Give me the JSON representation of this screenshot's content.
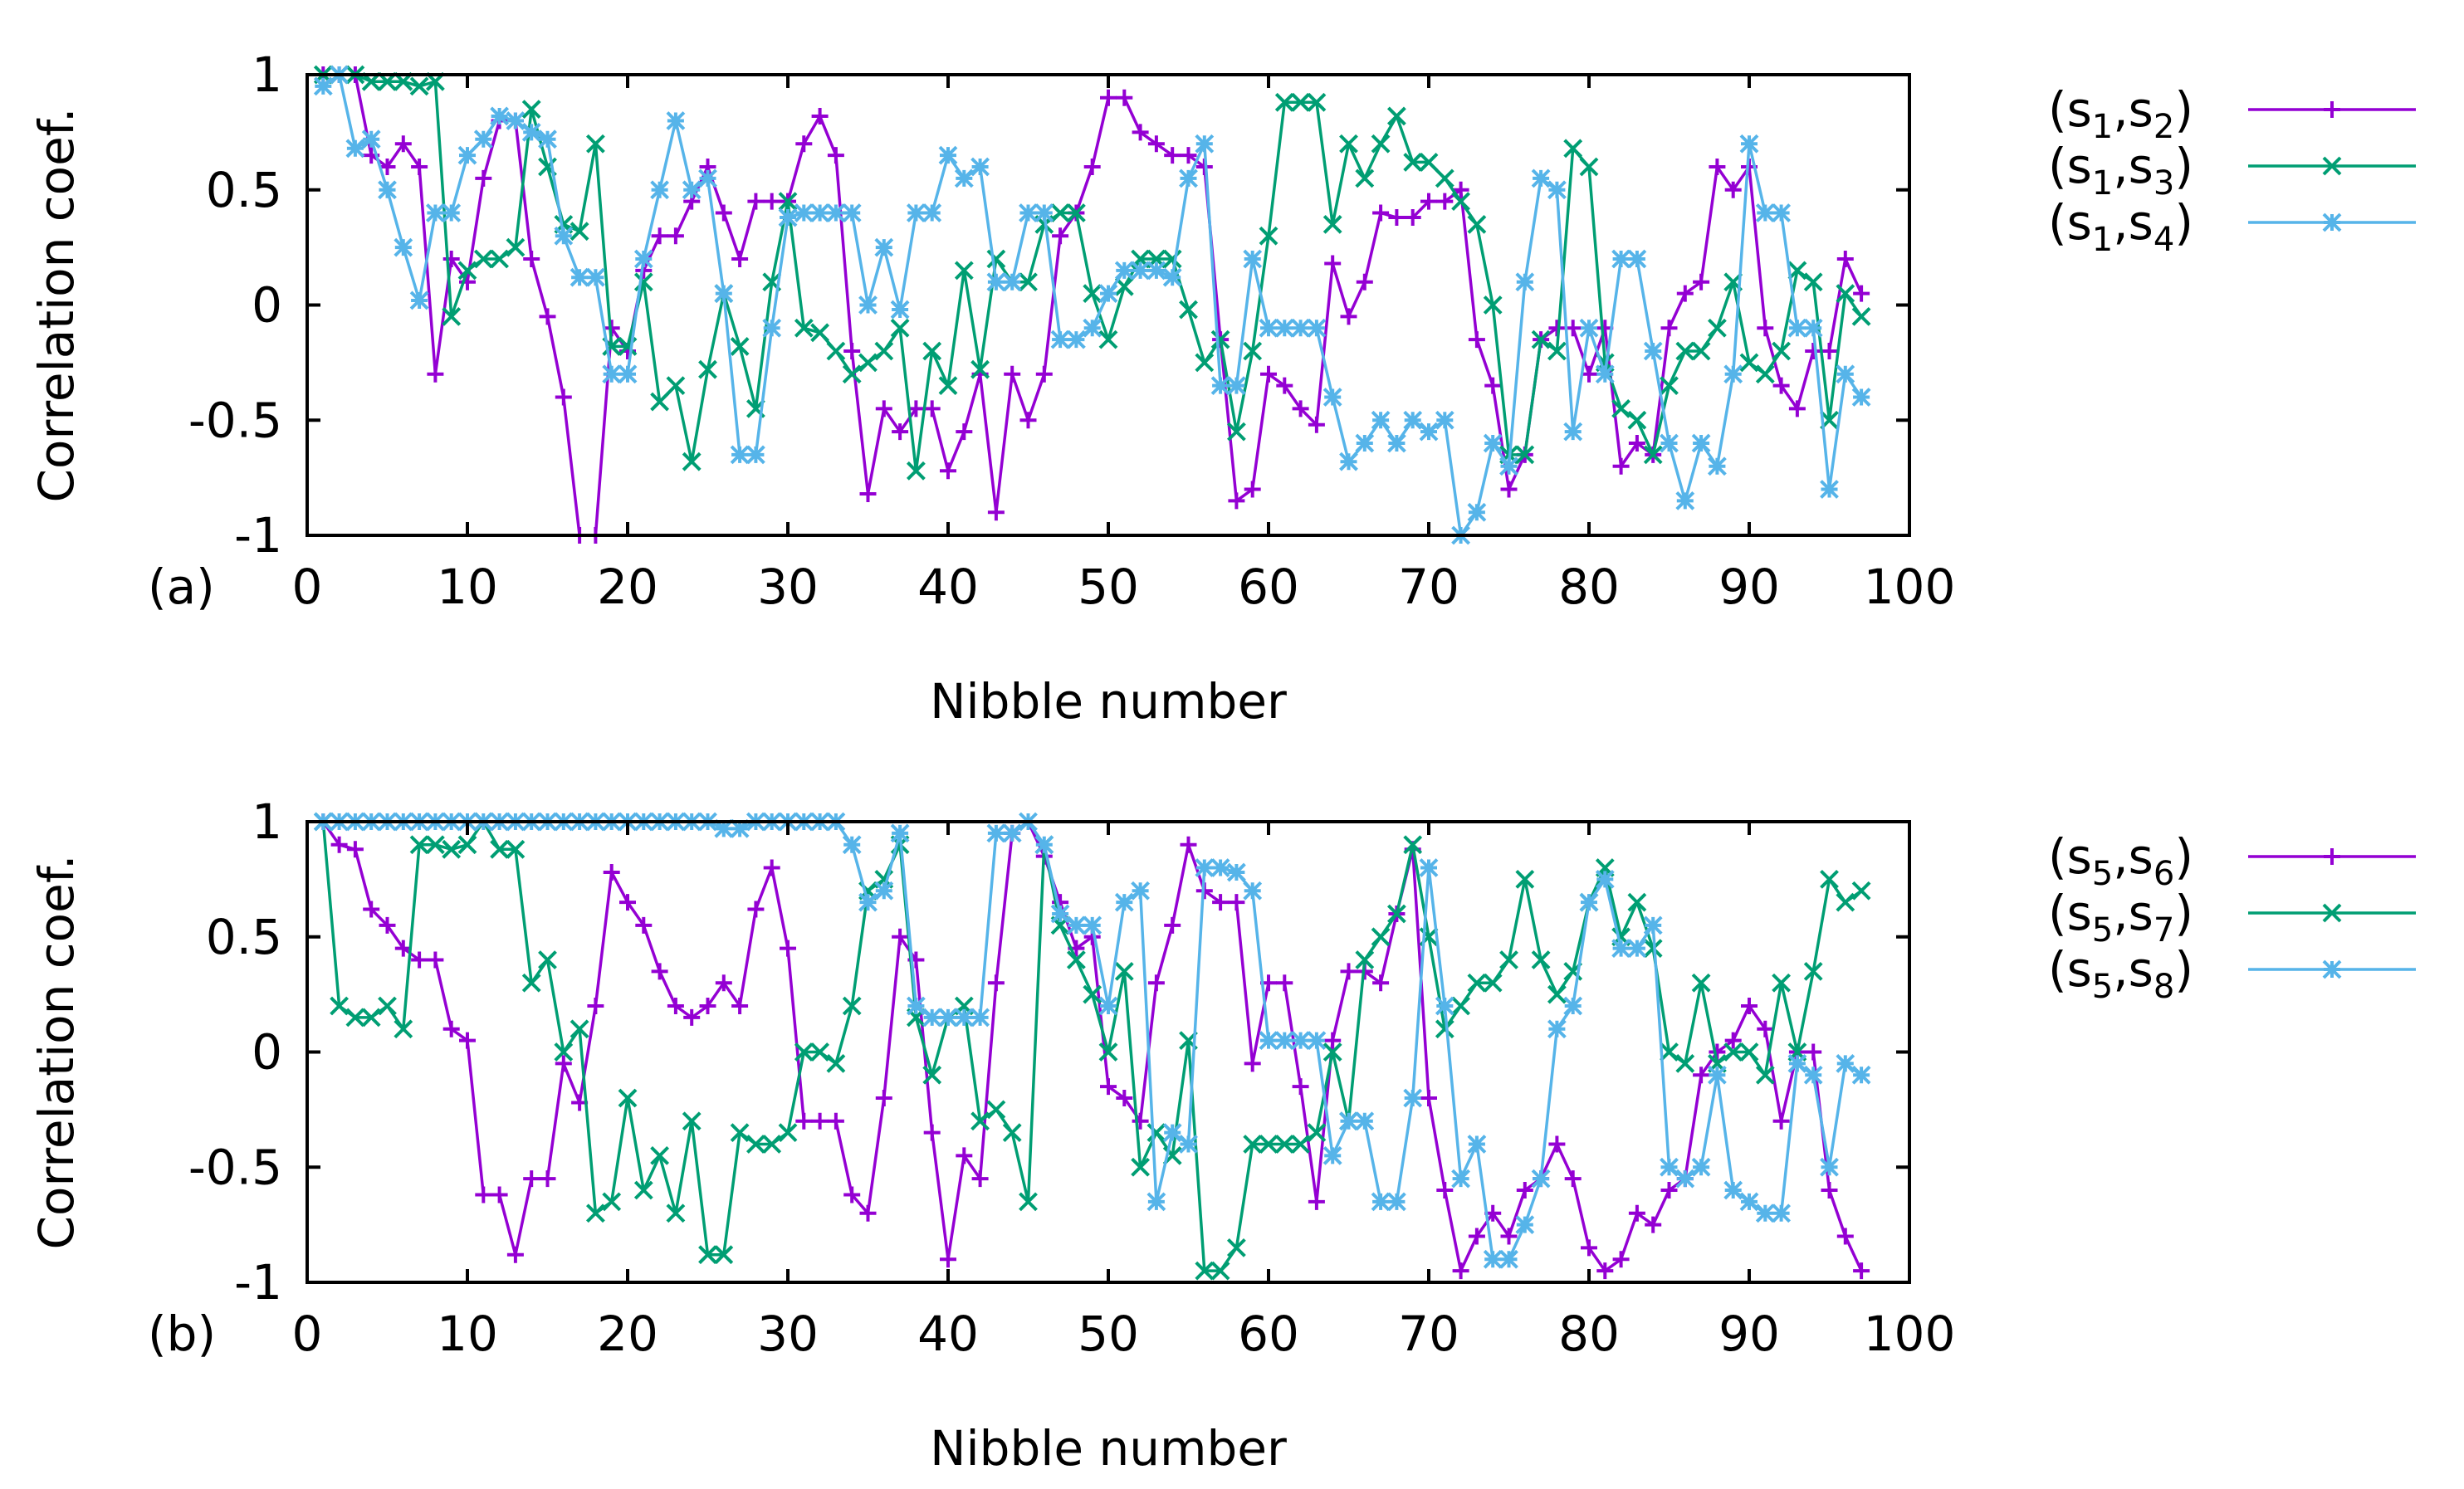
{
  "colors": {
    "series1": "#9400D3",
    "series2": "#009E73",
    "series3": "#56B4E9"
  },
  "chart_data": [
    {
      "type": "line",
      "panel_label": "(a)",
      "xlabel": "Nibble number",
      "ylabel": "Correlation coef.",
      "xlim": [
        0,
        100
      ],
      "ylim": [
        -1,
        1
      ],
      "xticks": [
        0,
        10,
        20,
        30,
        40,
        50,
        60,
        70,
        80,
        90,
        100
      ],
      "xtick_labels": [
        "0",
        "10",
        "20",
        "30",
        "40",
        "50",
        "60",
        "70",
        "80",
        "90",
        "100"
      ],
      "yticks": [
        1,
        0.5,
        0,
        -0.5,
        -1
      ],
      "ytick_labels": [
        "1",
        "0.5",
        "0",
        "-0.5",
        "-1"
      ],
      "legend_position": "outside-right",
      "x": [
        1,
        2,
        3,
        4,
        5,
        6,
        7,
        8,
        9,
        10,
        11,
        12,
        13,
        14,
        15,
        16,
        17,
        18,
        19,
        20,
        21,
        22,
        23,
        24,
        25,
        26,
        27,
        28,
        29,
        30,
        31,
        32,
        33,
        34,
        35,
        36,
        37,
        38,
        39,
        40,
        41,
        42,
        43,
        44,
        45,
        46,
        47,
        48,
        49,
        50,
        51,
        52,
        53,
        54,
        55,
        56,
        57,
        58,
        59,
        60,
        61,
        62,
        63,
        64,
        65,
        66,
        67,
        68,
        69,
        70,
        71,
        72,
        73,
        74,
        75,
        76,
        77,
        78,
        79,
        80,
        81,
        82,
        83,
        84,
        85,
        86,
        87,
        88,
        89,
        90,
        91,
        92,
        93,
        94,
        95,
        96,
        97
      ],
      "series": [
        {
          "legend": {
            "open": "(s",
            "a": "1",
            "sep": ",s",
            "b": "2",
            "close": ")"
          },
          "color": "#9400D3",
          "marker": "plus",
          "values": [
            1.0,
            1.0,
            1.0,
            0.65,
            0.6,
            0.7,
            0.6,
            -0.3,
            0.2,
            0.1,
            0.55,
            0.8,
            0.8,
            0.2,
            -0.05,
            -0.4,
            -1.0,
            -1.0,
            -0.1,
            -0.2,
            0.15,
            0.3,
            0.3,
            0.45,
            0.6,
            0.4,
            0.2,
            0.45,
            0.45,
            0.45,
            0.7,
            0.82,
            0.65,
            -0.2,
            -0.82,
            -0.45,
            -0.55,
            -0.45,
            -0.45,
            -0.72,
            -0.55,
            -0.3,
            -0.9,
            -0.3,
            -0.5,
            -0.3,
            0.3,
            0.4,
            0.6,
            0.9,
            0.9,
            0.75,
            0.7,
            0.65,
            0.65,
            0.6,
            -0.15,
            -0.85,
            -0.8,
            -0.3,
            -0.35,
            -0.45,
            -0.52,
            0.18,
            -0.05,
            0.1,
            0.4,
            0.38,
            0.38,
            0.45,
            0.45,
            0.5,
            -0.15,
            -0.35,
            -0.8,
            -0.65,
            -0.15,
            -0.1,
            -0.1,
            -0.3,
            -0.1,
            -0.7,
            -0.6,
            -0.65,
            -0.1,
            0.05,
            0.1,
            0.6,
            0.5,
            0.6,
            -0.1,
            -0.35,
            -0.45,
            -0.2,
            -0.2,
            0.2,
            0.05
          ]
        },
        {
          "legend": {
            "open": "(s",
            "a": "1",
            "sep": ",s",
            "b": "3",
            "close": ")"
          },
          "color": "#009E73",
          "marker": "cross",
          "values": [
            1.0,
            1.0,
            1.0,
            0.97,
            0.97,
            0.97,
            0.95,
            0.97,
            -0.05,
            0.15,
            0.2,
            0.2,
            0.25,
            0.85,
            0.6,
            0.35,
            0.32,
            0.7,
            -0.18,
            -0.18,
            0.1,
            -0.42,
            -0.35,
            -0.68,
            -0.28,
            0.05,
            -0.18,
            -0.45,
            0.1,
            0.45,
            -0.1,
            -0.12,
            -0.2,
            -0.3,
            -0.25,
            -0.2,
            -0.1,
            -0.72,
            -0.2,
            -0.35,
            0.15,
            -0.28,
            0.2,
            0.1,
            0.1,
            0.35,
            0.4,
            0.4,
            0.05,
            -0.15,
            0.08,
            0.2,
            0.2,
            0.2,
            -0.02,
            -0.25,
            -0.15,
            -0.55,
            -0.2,
            0.3,
            0.88,
            0.88,
            0.88,
            0.35,
            0.7,
            0.55,
            0.7,
            0.82,
            0.62,
            0.62,
            0.55,
            0.45,
            0.35,
            0.0,
            -0.65,
            -0.65,
            -0.15,
            -0.2,
            0.68,
            0.6,
            -0.25,
            -0.45,
            -0.5,
            -0.65,
            -0.35,
            -0.2,
            -0.2,
            -0.1,
            0.1,
            -0.25,
            -0.3,
            -0.2,
            0.15,
            0.1,
            -0.5,
            0.05,
            -0.05
          ]
        },
        {
          "legend": {
            "open": "(s",
            "a": "1",
            "sep": ",s",
            "b": "4",
            "close": ")"
          },
          "color": "#56B4E9",
          "marker": "star",
          "values": [
            0.95,
            1.0,
            0.68,
            0.72,
            0.5,
            0.25,
            0.02,
            0.4,
            0.4,
            0.65,
            0.72,
            0.82,
            0.8,
            0.75,
            0.72,
            0.3,
            0.12,
            0.12,
            -0.3,
            -0.3,
            0.2,
            0.5,
            0.8,
            0.5,
            0.55,
            0.05,
            -0.65,
            -0.65,
            -0.1,
            0.38,
            0.4,
            0.4,
            0.4,
            0.4,
            0.0,
            0.25,
            -0.02,
            0.4,
            0.4,
            0.65,
            0.55,
            0.6,
            0.1,
            0.1,
            0.4,
            0.4,
            -0.15,
            -0.15,
            -0.1,
            0.05,
            0.15,
            0.15,
            0.15,
            0.12,
            0.55,
            0.7,
            -0.35,
            -0.35,
            0.2,
            -0.1,
            -0.1,
            -0.1,
            -0.1,
            -0.4,
            -0.68,
            -0.6,
            -0.5,
            -0.6,
            -0.5,
            -0.55,
            -0.5,
            -1.0,
            -0.9,
            -0.6,
            -0.7,
            0.1,
            0.55,
            0.5,
            -0.55,
            -0.1,
            -0.3,
            0.2,
            0.2,
            -0.2,
            -0.6,
            -0.85,
            -0.6,
            -0.7,
            -0.3,
            0.7,
            0.4,
            0.4,
            -0.1,
            -0.1,
            -0.8,
            -0.3,
            -0.4
          ]
        }
      ]
    },
    {
      "type": "line",
      "panel_label": "(b)",
      "xlabel": "Nibble number",
      "ylabel": "Correlation coef.",
      "xlim": [
        0,
        100
      ],
      "ylim": [
        -1,
        1
      ],
      "xticks": [
        0,
        10,
        20,
        30,
        40,
        50,
        60,
        70,
        80,
        90,
        100
      ],
      "xtick_labels": [
        "0",
        "10",
        "20",
        "30",
        "40",
        "50",
        "60",
        "70",
        "80",
        "90",
        "100"
      ],
      "yticks": [
        1,
        0.5,
        0,
        -0.5,
        -1
      ],
      "ytick_labels": [
        "1",
        "0.5",
        "0",
        "-0.5",
        "-1"
      ],
      "legend_position": "outside-right",
      "x": [
        1,
        2,
        3,
        4,
        5,
        6,
        7,
        8,
        9,
        10,
        11,
        12,
        13,
        14,
        15,
        16,
        17,
        18,
        19,
        20,
        21,
        22,
        23,
        24,
        25,
        26,
        27,
        28,
        29,
        30,
        31,
        32,
        33,
        34,
        35,
        36,
        37,
        38,
        39,
        40,
        41,
        42,
        43,
        44,
        45,
        46,
        47,
        48,
        49,
        50,
        51,
        52,
        53,
        54,
        55,
        56,
        57,
        58,
        59,
        60,
        61,
        62,
        63,
        64,
        65,
        66,
        67,
        68,
        69,
        70,
        71,
        72,
        73,
        74,
        75,
        76,
        77,
        78,
        79,
        80,
        81,
        82,
        83,
        84,
        85,
        86,
        87,
        88,
        89,
        90,
        91,
        92,
        93,
        94,
        95,
        96,
        97
      ],
      "series": [
        {
          "legend": {
            "open": "(s",
            "a": "5",
            "sep": ",s",
            "b": "6",
            "close": ")"
          },
          "color": "#9400D3",
          "marker": "plus",
          "values": [
            1.0,
            0.9,
            0.88,
            0.62,
            0.55,
            0.45,
            0.4,
            0.4,
            0.1,
            0.05,
            -0.62,
            -0.62,
            -0.88,
            -0.55,
            -0.55,
            -0.05,
            -0.22,
            0.2,
            0.78,
            0.65,
            0.55,
            0.35,
            0.2,
            0.15,
            0.2,
            0.3,
            0.2,
            0.62,
            0.8,
            0.45,
            -0.3,
            -0.3,
            -0.3,
            -0.62,
            -0.7,
            -0.2,
            0.5,
            0.4,
            -0.35,
            -0.9,
            -0.45,
            -0.55,
            0.3,
            0.95,
            1.0,
            0.85,
            0.65,
            0.45,
            0.5,
            -0.15,
            -0.2,
            -0.3,
            0.3,
            0.55,
            0.9,
            0.7,
            0.65,
            0.65,
            -0.05,
            0.3,
            0.3,
            -0.15,
            -0.65,
            0.05,
            0.35,
            0.35,
            0.3,
            0.6,
            0.88,
            -0.2,
            -0.6,
            -0.95,
            -0.8,
            -0.7,
            -0.8,
            -0.6,
            -0.55,
            -0.4,
            -0.55,
            -0.85,
            -0.95,
            -0.9,
            -0.7,
            -0.75,
            -0.6,
            -0.55,
            -0.1,
            0.0,
            0.05,
            0.2,
            0.1,
            -0.3,
            0.0,
            0.0,
            -0.6,
            -0.8,
            -0.95
          ]
        },
        {
          "legend": {
            "open": "(s",
            "a": "5",
            "sep": ",s",
            "b": "7",
            "close": ")"
          },
          "color": "#009E73",
          "marker": "cross",
          "values": [
            1.0,
            0.2,
            0.15,
            0.15,
            0.2,
            0.1,
            0.9,
            0.9,
            0.88,
            0.9,
            1.0,
            0.88,
            0.88,
            0.3,
            0.4,
            0.0,
            0.1,
            -0.7,
            -0.65,
            -0.2,
            -0.6,
            -0.45,
            -0.7,
            -0.3,
            -0.88,
            -0.88,
            -0.35,
            -0.4,
            -0.4,
            -0.35,
            0.0,
            0.0,
            -0.05,
            0.2,
            0.7,
            0.75,
            0.9,
            0.15,
            -0.1,
            0.15,
            0.2,
            -0.3,
            -0.25,
            -0.35,
            -0.65,
            0.9,
            0.55,
            0.4,
            0.25,
            0.0,
            0.35,
            -0.5,
            -0.35,
            -0.45,
            0.05,
            -0.95,
            -0.95,
            -0.85,
            -0.4,
            -0.4,
            -0.4,
            -0.4,
            -0.35,
            0.0,
            -0.3,
            0.4,
            0.5,
            0.6,
            0.9,
            0.5,
            0.1,
            0.2,
            0.3,
            0.3,
            0.4,
            0.75,
            0.4,
            0.25,
            0.35,
            0.65,
            0.8,
            0.5,
            0.65,
            0.45,
            0.0,
            -0.05,
            0.3,
            -0.05,
            0.0,
            0.0,
            -0.1,
            0.3,
            0.0,
            0.35,
            0.75,
            0.65,
            0.7
          ]
        },
        {
          "legend": {
            "open": "(s",
            "a": "5",
            "sep": ",s",
            "b": "8",
            "close": ")"
          },
          "color": "#56B4E9",
          "marker": "star",
          "values": [
            1.0,
            1.0,
            1.0,
            1.0,
            1.0,
            1.0,
            1.0,
            1.0,
            1.0,
            1.0,
            1.0,
            1.0,
            1.0,
            1.0,
            1.0,
            1.0,
            1.0,
            1.0,
            1.0,
            1.0,
            1.0,
            1.0,
            1.0,
            1.0,
            1.0,
            0.97,
            0.97,
            1.0,
            1.0,
            1.0,
            1.0,
            1.0,
            1.0,
            0.9,
            0.65,
            0.7,
            0.95,
            0.2,
            0.15,
            0.15,
            0.15,
            0.15,
            0.95,
            0.95,
            1.0,
            0.9,
            0.6,
            0.55,
            0.55,
            0.2,
            0.65,
            0.7,
            -0.65,
            -0.35,
            -0.4,
            0.8,
            0.8,
            0.78,
            0.7,
            0.05,
            0.05,
            0.05,
            0.05,
            -0.45,
            -0.3,
            -0.3,
            -0.65,
            -0.65,
            -0.2,
            0.8,
            0.2,
            -0.55,
            -0.4,
            -0.9,
            -0.9,
            -0.75,
            -0.55,
            0.1,
            0.2,
            0.65,
            0.75,
            0.45,
            0.45,
            0.55,
            -0.5,
            -0.55,
            -0.5,
            -0.1,
            -0.6,
            -0.65,
            -0.7,
            -0.7,
            -0.05,
            -0.1,
            -0.5,
            -0.05,
            -0.1
          ]
        }
      ]
    }
  ]
}
